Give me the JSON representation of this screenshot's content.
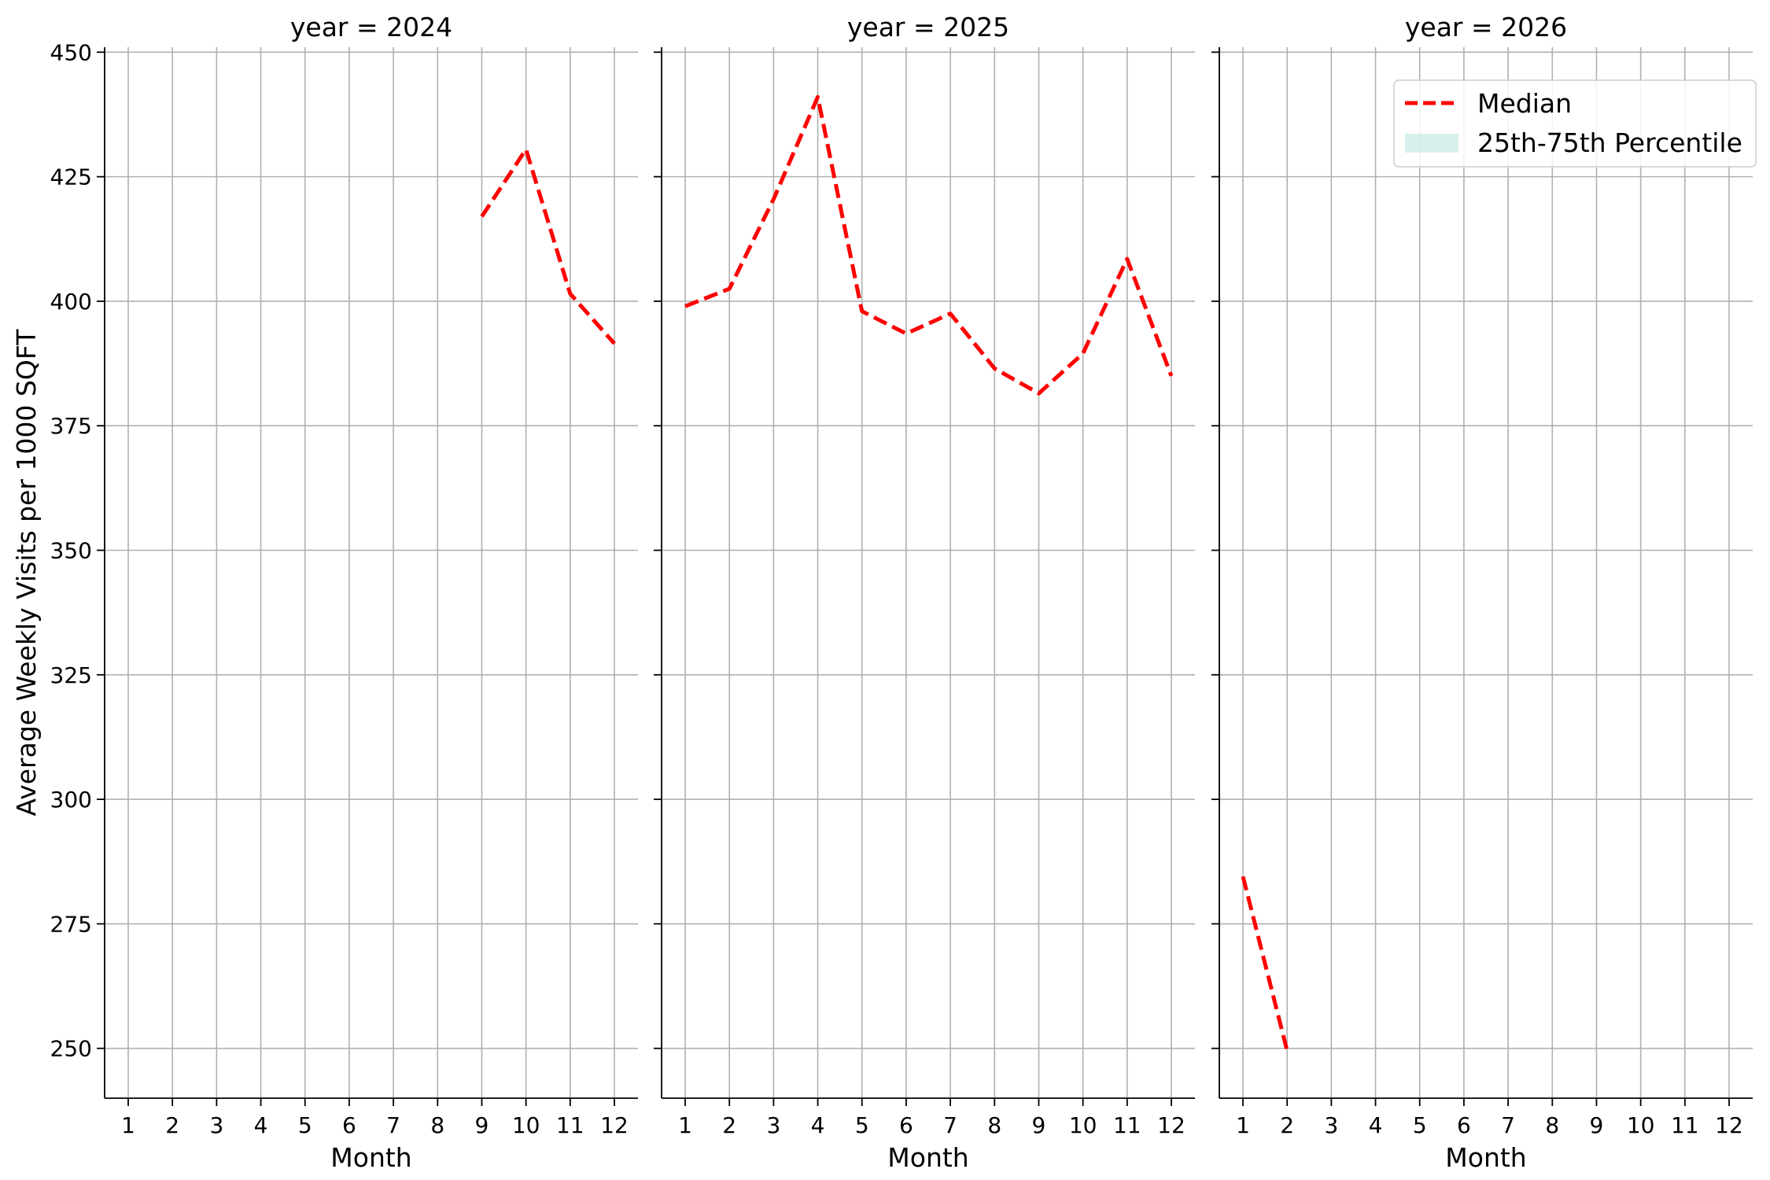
{
  "chart_data": {
    "type": "line",
    "ylabel": "Average Weekly Visits per 1000 SQFT",
    "xlabel": "Month",
    "ylim": [
      240,
      451
    ],
    "yticks": [
      250,
      275,
      300,
      325,
      350,
      375,
      400,
      425,
      450
    ],
    "xticks": [
      1,
      2,
      3,
      4,
      5,
      6,
      7,
      8,
      9,
      10,
      11,
      12
    ],
    "grid": true,
    "legend": {
      "placement": "top-right of last panel",
      "entries": [
        {
          "label": "Median",
          "style": "dashed-line",
          "color": "#ff0000"
        },
        {
          "label": "25th-75th Percentile",
          "style": "band",
          "color": "#b2dfdb"
        }
      ]
    },
    "panels": [
      {
        "title": "year = 2024",
        "series": [
          {
            "name": "Median",
            "x": [
              9,
              10,
              11,
              12
            ],
            "values": [
              417,
              430.5,
              401.5,
              391.5
            ]
          }
        ]
      },
      {
        "title": "year = 2025",
        "series": [
          {
            "name": "Median",
            "x": [
              1,
              2,
              3,
              4,
              5,
              6,
              7,
              8,
              9,
              10,
              11,
              12
            ],
            "values": [
              399,
              402.5,
              420.5,
              441,
              398,
              393.5,
              397.5,
              386.5,
              381.5,
              389.5,
              408.5,
              385
            ]
          }
        ]
      },
      {
        "title": "year = 2026",
        "series": [
          {
            "name": "Median",
            "x": [
              1,
              2
            ],
            "values": [
              284.5,
              249.5
            ]
          }
        ]
      }
    ]
  },
  "colors": {
    "median_line": "#ff0000",
    "percentile_band": "#b2dfdb",
    "grid": "#b0b0b0",
    "axis": "#000000"
  }
}
